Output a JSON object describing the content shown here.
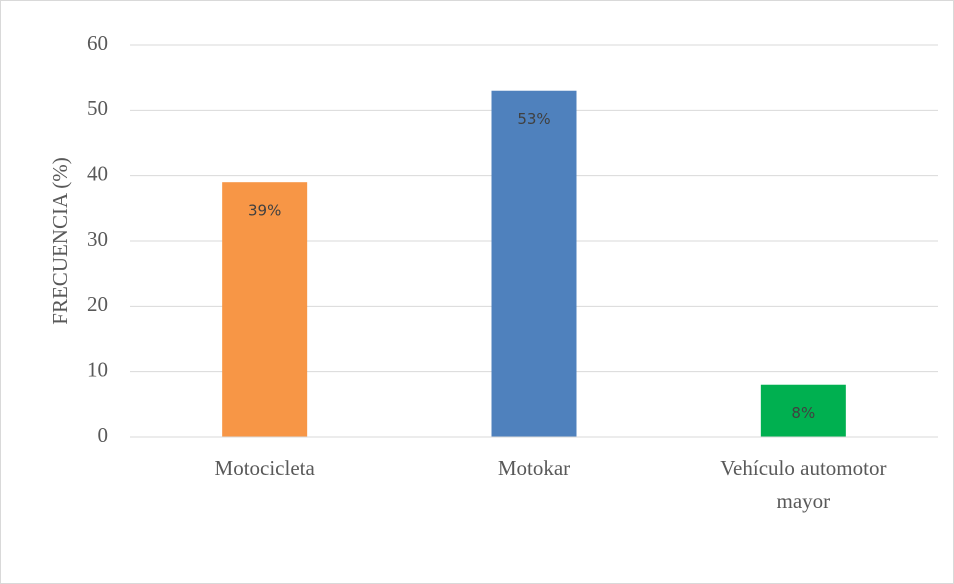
{
  "chart_data": {
    "type": "bar",
    "categories": [
      "Motocicleta",
      "Motokar",
      "Vehículo automotor mayor"
    ],
    "values": [
      39,
      53,
      8
    ],
    "value_labels": [
      "39%",
      "53%",
      "8%"
    ],
    "colors": [
      "#f79646",
      "#4f81bd",
      "#00b050"
    ],
    "ylabel": "FRECUENCIA (%)",
    "ylim": [
      0,
      60
    ],
    "yticks": [
      0,
      10,
      20,
      30,
      40,
      50,
      60
    ],
    "grid": true
  }
}
